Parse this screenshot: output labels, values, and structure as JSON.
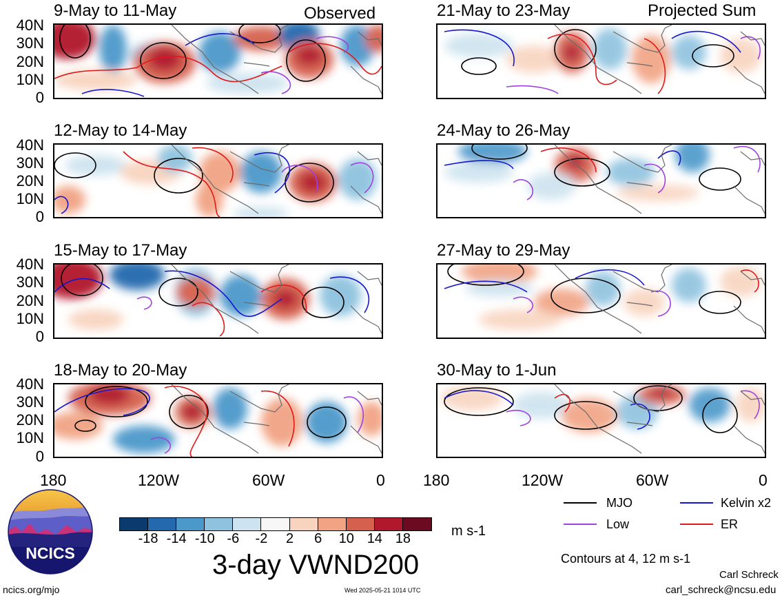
{
  "headers": {
    "observed": "Observed",
    "projected": "Projected Sum"
  },
  "lat_labels": [
    "40N",
    "30N",
    "20N",
    "10N",
    "0"
  ],
  "lon_labels": [
    "180",
    "120W",
    "60W",
    "0"
  ],
  "panels_left": [
    {
      "title": "9-May to 11-May"
    },
    {
      "title": "12-May to 14-May"
    },
    {
      "title": "15-May to 17-May"
    },
    {
      "title": "18-May to 20-May"
    }
  ],
  "panels_right": [
    {
      "title": "21-May to 23-May"
    },
    {
      "title": "24-May to 26-May"
    },
    {
      "title": "27-May to 29-May"
    },
    {
      "title": "30-May to 1-Jun"
    }
  ],
  "colorbar": {
    "colors": [
      "#0b3b6e",
      "#2469ad",
      "#4b98ca",
      "#8ec2df",
      "#cde3ef",
      "#f7f7f7",
      "#f8d4bf",
      "#f1a383",
      "#d5604d",
      "#b1182b",
      "#6b0a20"
    ],
    "ticks": [
      "-18",
      "-14",
      "-10",
      "-6",
      "-2",
      "2",
      "6",
      "10",
      "14",
      "18"
    ],
    "units": "m s-1"
  },
  "main_title": "3-day VWND200",
  "legend": {
    "items": [
      {
        "label": "MJO",
        "color": "#000000"
      },
      {
        "label": "Kelvin x2",
        "color": "#1515d0"
      },
      {
        "label": "Low",
        "color": "#a040e0"
      },
      {
        "label": "ER",
        "color": "#e01818"
      }
    ],
    "note": "Contours at 4, 12 m s-1"
  },
  "logo": {
    "text": "NCICS"
  },
  "footer": {
    "url": "ncics.org/mjo",
    "timestamp": "Wed 2025-05-21 1014 UTC",
    "author": "Carl Schreck",
    "email": "carl_schreck@ncsu.edu"
  }
}
